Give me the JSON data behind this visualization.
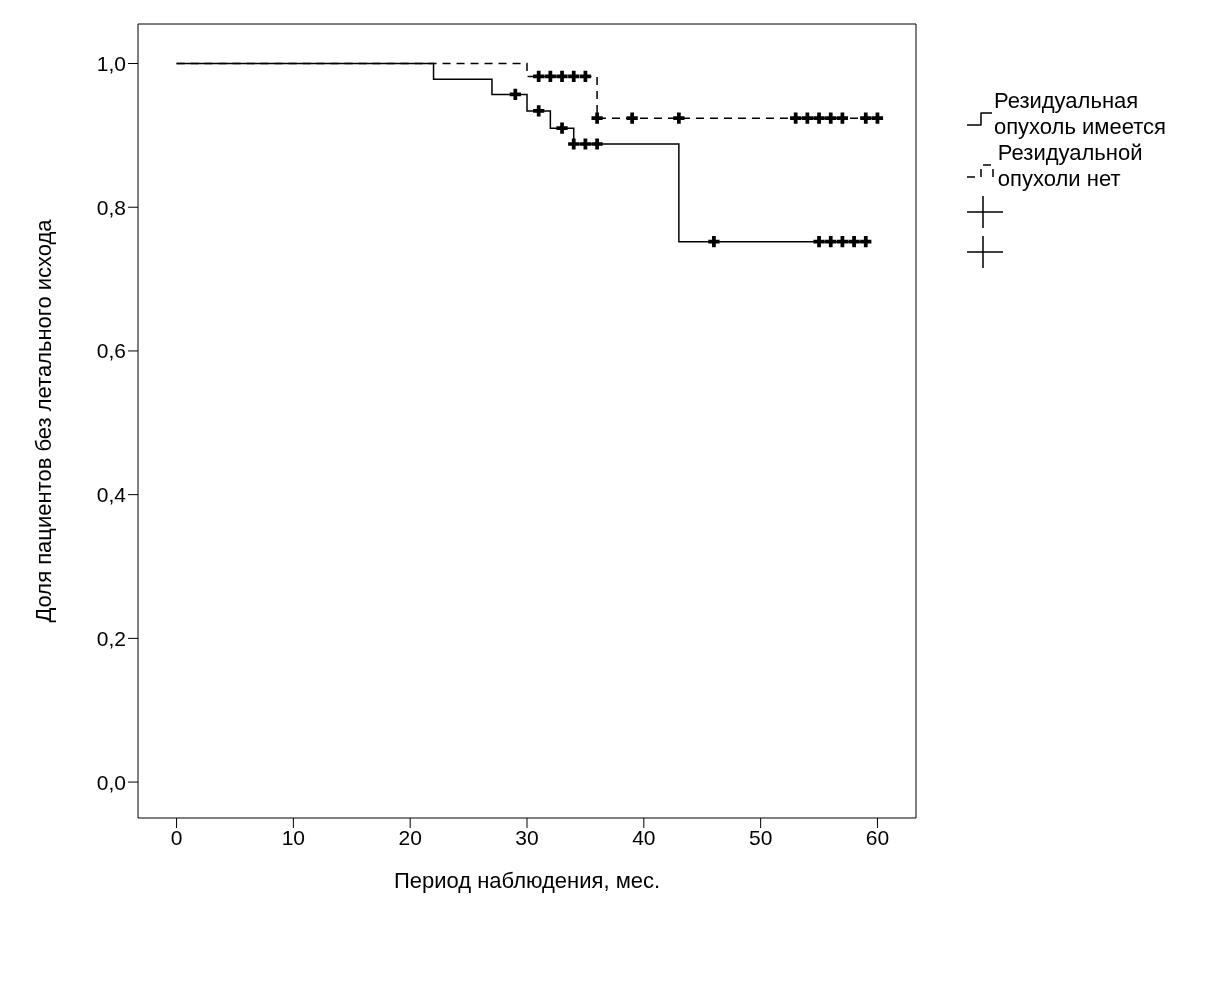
{
  "chart_data": {
    "type": "step",
    "xlabel": "Период наблюдения, мес.",
    "ylabel": "Доля пациентов без летального исхода",
    "xlim": [
      -3.3,
      63.3
    ],
    "ylim": [
      -0.05,
      1.055
    ],
    "xticks": [
      0,
      10,
      20,
      30,
      40,
      50,
      60
    ],
    "yticks": [
      {
        "value": 0,
        "label": "0,0"
      },
      {
        "value": 0.2,
        "label": "0,2"
      },
      {
        "value": 0.4,
        "label": "0,4"
      },
      {
        "value": 0.6,
        "label": "0,6"
      },
      {
        "value": 0.8,
        "label": "0,8"
      },
      {
        "value": 1,
        "label": "1,0"
      }
    ],
    "grid": false,
    "legend": "right",
    "series": [
      {
        "name": "Резидуальная опухоль имеется",
        "color": "#000000",
        "line_style": "solid",
        "x": [
          0,
          22,
          27,
          30,
          32,
          34,
          43,
          59
        ],
        "values": [
          1,
          0.978,
          0.957,
          0.934,
          0.91,
          0.888,
          0.752,
          0.752
        ]
      },
      {
        "name": "Резидуальной опухоли нет",
        "color": "#000000",
        "line_style": "dashed",
        "x": [
          0,
          30,
          36,
          60
        ],
        "values": [
          1,
          0.982,
          0.924,
          0.924
        ]
      },
      {
        "type": "scatter",
        "marker": "cross",
        "color": "#000000",
        "x": [
          29,
          31,
          33,
          34,
          35,
          36,
          46,
          55,
          56,
          57,
          58,
          59
        ],
        "values": [
          0.957,
          0.934,
          0.91,
          0.888,
          0.888,
          0.888,
          0.752,
          0.752,
          0.752,
          0.752,
          0.752,
          0.752
        ]
      },
      {
        "type": "scatter",
        "marker": "cross",
        "color": "#000000",
        "x": [
          31,
          32,
          33,
          34,
          35,
          36,
          39,
          43,
          53,
          54,
          55,
          56,
          57,
          59,
          60
        ],
        "values": [
          0.982,
          0.982,
          0.982,
          0.982,
          0.982,
          0.924,
          0.924,
          0.924,
          0.924,
          0.924,
          0.924,
          0.924,
          0.924,
          0.924,
          0.924
        ]
      }
    ]
  }
}
